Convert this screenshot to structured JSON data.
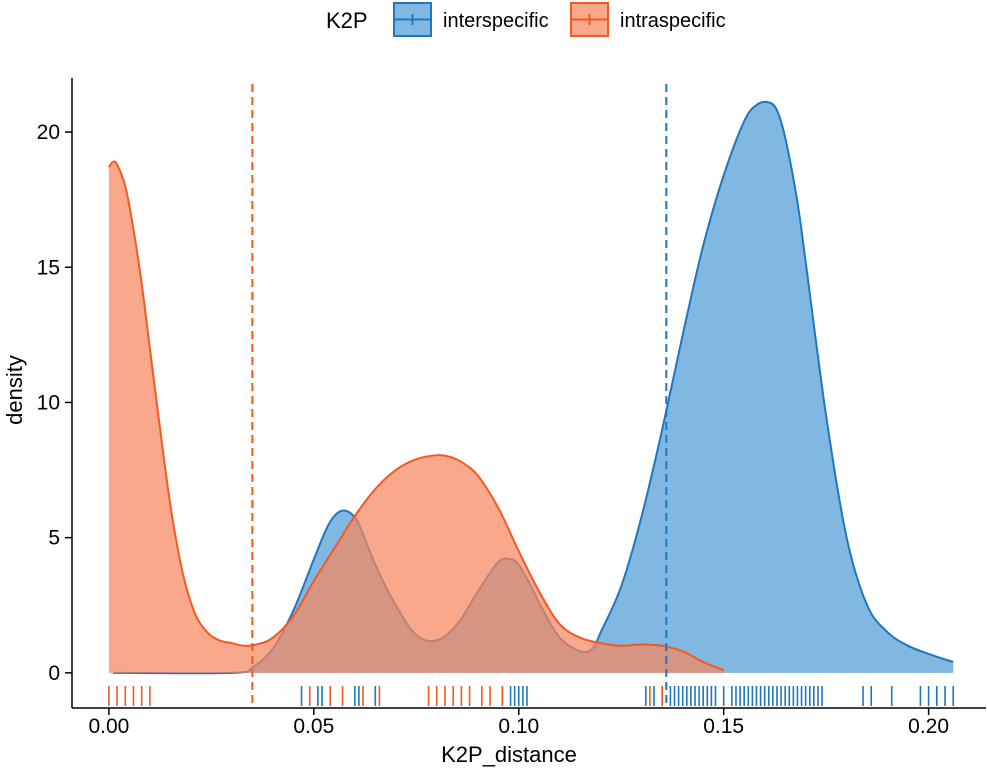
{
  "chart_data": {
    "type": "area",
    "xlabel": "K2P_distance",
    "ylabel": "density",
    "xlim": [
      -0.009,
      0.214
    ],
    "ylim": [
      -1.3,
      22
    ],
    "x_ticks": [
      0.0,
      0.05,
      0.1,
      0.15,
      0.2
    ],
    "x_tick_labels": [
      "0.00",
      "0.05",
      "0.10",
      "0.15",
      "0.20"
    ],
    "y_ticks": [
      0,
      5,
      10,
      15,
      20
    ],
    "y_tick_labels": [
      "0",
      "5",
      "10",
      "15",
      "20"
    ],
    "grid": false,
    "legend": {
      "title": "K2P",
      "placement": "top",
      "entries": [
        "interspecific",
        "intraspecific"
      ]
    },
    "series": [
      {
        "name": "interspecific",
        "line_color": "#1f77bf",
        "fill_color": "#5da4d9",
        "fill_opacity": 0.78,
        "mean_line_x": 0.136,
        "density_curve": {
          "x": [
            0.001,
            0.03,
            0.035,
            0.04,
            0.045,
            0.05,
            0.053,
            0.055,
            0.057,
            0.059,
            0.061,
            0.065,
            0.07,
            0.075,
            0.08,
            0.085,
            0.09,
            0.095,
            0.098,
            0.1,
            0.103,
            0.106,
            0.11,
            0.115,
            0.118,
            0.12,
            0.125,
            0.13,
            0.135,
            0.14,
            0.145,
            0.15,
            0.155,
            0.158,
            0.161,
            0.163,
            0.165,
            0.168,
            0.17,
            0.175,
            0.18,
            0.185,
            0.19,
            0.195,
            0.2,
            0.206
          ],
          "y": [
            0.0,
            0.0,
            0.2,
            0.9,
            2.3,
            4.2,
            5.3,
            5.8,
            6.0,
            5.9,
            5.5,
            4.0,
            2.5,
            1.4,
            1.2,
            1.8,
            3.0,
            4.1,
            4.2,
            4.0,
            3.2,
            2.3,
            1.3,
            0.8,
            0.9,
            1.5,
            3.2,
            5.8,
            9.0,
            12.5,
            15.8,
            18.4,
            20.4,
            21.0,
            21.1,
            20.8,
            19.8,
            17.4,
            15.2,
            9.5,
            5.0,
            2.5,
            1.5,
            1.0,
            0.7,
            0.4
          ]
        },
        "rug": [
          0.047,
          0.051,
          0.052,
          0.06,
          0.061,
          0.065,
          0.096,
          0.098,
          0.099,
          0.1,
          0.101,
          0.102,
          0.131,
          0.133,
          0.135,
          0.137,
          0.138,
          0.139,
          0.14,
          0.141,
          0.142,
          0.143,
          0.144,
          0.145,
          0.146,
          0.147,
          0.148,
          0.15,
          0.152,
          0.153,
          0.154,
          0.155,
          0.156,
          0.157,
          0.158,
          0.159,
          0.16,
          0.161,
          0.162,
          0.163,
          0.164,
          0.165,
          0.166,
          0.167,
          0.168,
          0.169,
          0.17,
          0.171,
          0.172,
          0.173,
          0.174,
          0.184,
          0.186,
          0.191,
          0.198,
          0.2,
          0.202,
          0.204,
          0.206
        ]
      },
      {
        "name": "intraspecific",
        "line_color": "#f25a22",
        "fill_color": "#f7875e",
        "fill_opacity": 0.72,
        "mean_line_x": 0.035,
        "density_curve": {
          "x": [
            0.0,
            0.001,
            0.002,
            0.004,
            0.006,
            0.008,
            0.01,
            0.012,
            0.015,
            0.018,
            0.021,
            0.024,
            0.027,
            0.03,
            0.033,
            0.036,
            0.04,
            0.045,
            0.05,
            0.055,
            0.06,
            0.065,
            0.07,
            0.075,
            0.08,
            0.083,
            0.086,
            0.09,
            0.095,
            0.1,
            0.105,
            0.11,
            0.115,
            0.12,
            0.125,
            0.13,
            0.135,
            0.14,
            0.145,
            0.15
          ],
          "y": [
            18.7,
            18.9,
            18.8,
            18.0,
            16.4,
            14.4,
            12.0,
            9.6,
            6.2,
            3.7,
            2.2,
            1.5,
            1.2,
            1.1,
            1.0,
            1.05,
            1.3,
            2.1,
            3.4,
            4.6,
            5.8,
            6.8,
            7.5,
            7.9,
            8.05,
            8.0,
            7.8,
            7.3,
            6.1,
            4.5,
            3.0,
            1.8,
            1.3,
            1.1,
            1.0,
            1.05,
            1.0,
            0.8,
            0.4,
            0.1
          ]
        },
        "rug": [
          0.0,
          0.002,
          0.004,
          0.006,
          0.008,
          0.01,
          0.049,
          0.054,
          0.057,
          0.062,
          0.066,
          0.078,
          0.08,
          0.082,
          0.084,
          0.086,
          0.088,
          0.091,
          0.093,
          0.096,
          0.132,
          0.135
        ]
      }
    ]
  }
}
